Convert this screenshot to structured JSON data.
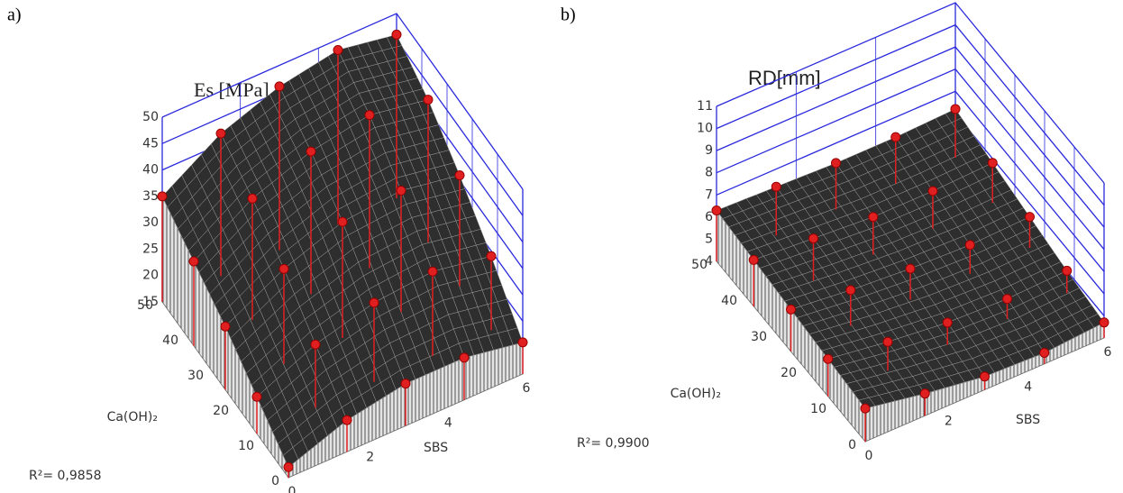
{
  "chart_data": [
    {
      "type": "surface3d",
      "panel_label": "a)",
      "title": "Es [MPa]",
      "x_label": "SBS",
      "y_label": "Ca(OH)₂",
      "annotation": "R²= 0,9858",
      "x": [
        0,
        1.5,
        3,
        4.5,
        6
      ],
      "y": [
        0,
        12.5,
        25,
        37.5,
        50
      ],
      "values": [
        [
          17,
          21,
          23,
          23,
          21
        ],
        [
          22,
          27,
          30,
          31,
          29
        ],
        [
          27,
          33,
          37,
          38,
          36
        ],
        [
          31,
          38,
          42,
          44,
          42
        ],
        [
          35,
          42,
          46,
          48,
          46
        ]
      ],
      "color": "#e02020",
      "wall_color": "#2a2adc",
      "xlim": [
        0,
        6
      ],
      "xticks": [
        0,
        2,
        4,
        6
      ],
      "ylim": [
        0,
        50
      ],
      "yticks": [
        0,
        10,
        20,
        30,
        40,
        50
      ],
      "zlim": [
        15,
        50
      ],
      "zticks": [
        15,
        20,
        25,
        30,
        35,
        40,
        45,
        50
      ]
    },
    {
      "type": "surface3d",
      "panel_label": "b)",
      "title": "RD[mm]",
      "x_label": "SBS",
      "y_label": "Ca(OH)₂",
      "annotation": "R²= 0,9900",
      "x": [
        0,
        1.5,
        3,
        4.5,
        6
      ],
      "y": [
        0,
        12.5,
        25,
        37.5,
        50
      ],
      "values": [
        [
          5.5,
          5.0,
          4.6,
          4.5,
          4.7
        ],
        [
          5.7,
          5.3,
          5.0,
          4.9,
          5.0
        ],
        [
          5.9,
          5.6,
          5.4,
          5.3,
          5.4
        ],
        [
          6.1,
          5.9,
          5.7,
          5.7,
          5.8
        ],
        [
          6.3,
          6.2,
          6.1,
          6.1,
          6.2
        ]
      ],
      "color": "#e02020",
      "wall_color": "#2a2adc",
      "xlim": [
        0,
        6
      ],
      "xticks": [
        0,
        2,
        4,
        6
      ],
      "ylim": [
        0,
        50
      ],
      "yticks": [
        0,
        10,
        20,
        30,
        40,
        50
      ],
      "zlim": [
        4,
        11
      ],
      "zticks": [
        4,
        5,
        6,
        7,
        8,
        9,
        10,
        11
      ]
    }
  ]
}
